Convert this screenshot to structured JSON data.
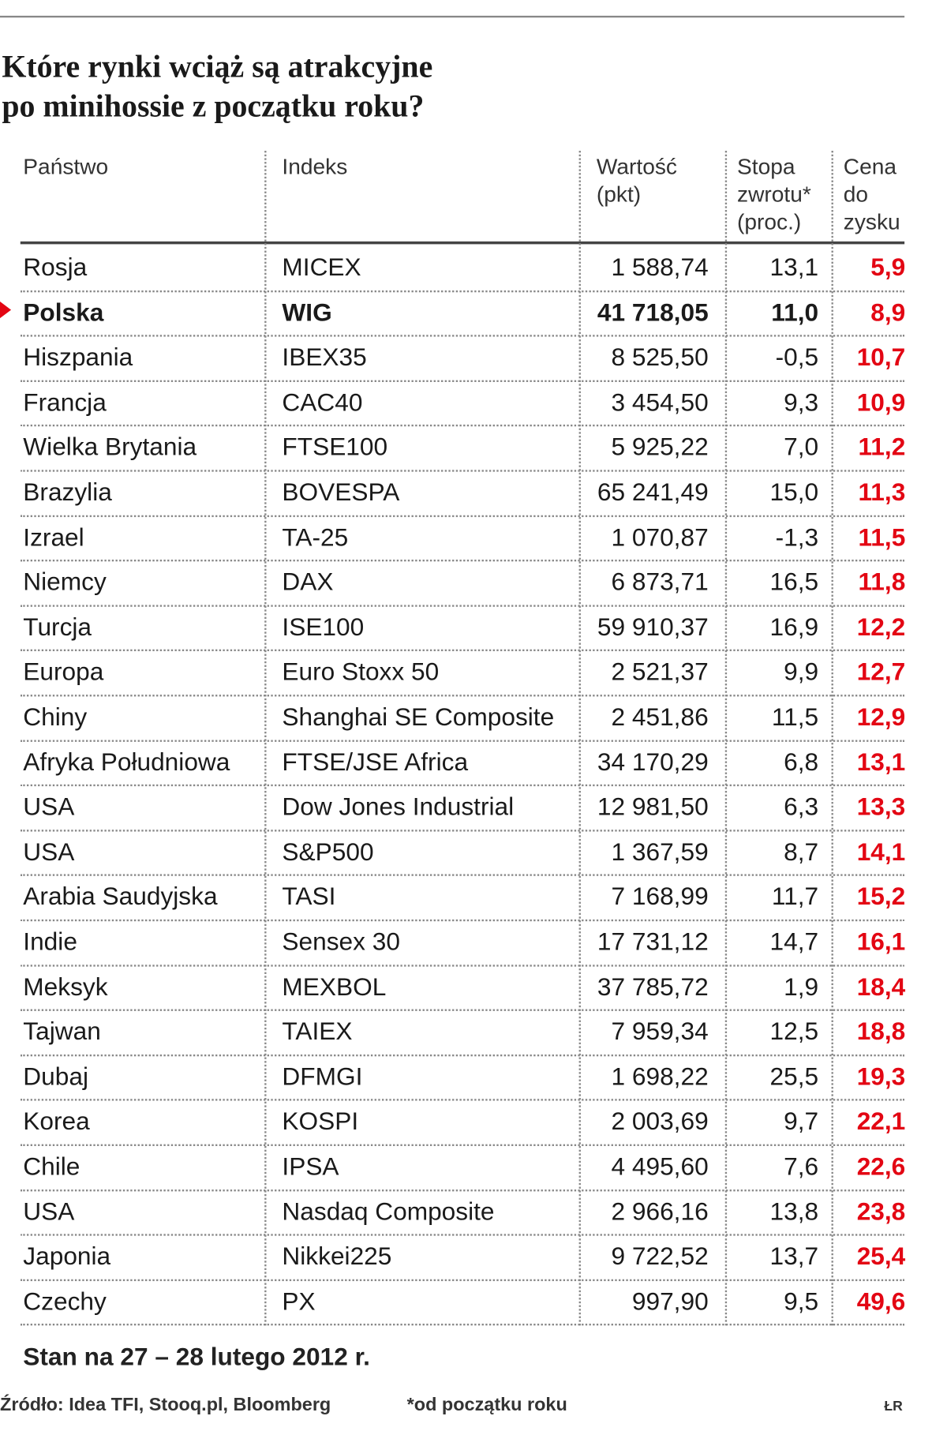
{
  "header": {
    "title": [
      "Które rynki wciąż są atrakcyjne",
      "po minihossie z początku roku?"
    ]
  },
  "table": {
    "columns": [
      [
        "Państwo"
      ],
      [
        "Indeks"
      ],
      [
        "Wartość",
        "(pkt)"
      ],
      [
        "Stopa",
        "zwrotu*",
        "(proc.)"
      ],
      [
        "Cena",
        "do",
        "zysku"
      ]
    ],
    "rows": [
      [
        "Rosja",
        "MICEX",
        "1 588,74",
        "13,1",
        "5,9"
      ],
      [
        "Polska",
        "WIG",
        "41 718,05",
        "11,0",
        "8,9"
      ],
      [
        "Hiszpania",
        "IBEX35",
        "8 525,50",
        "-0,5",
        "10,7"
      ],
      [
        "Francja",
        "CAC40",
        "3 454,50",
        "9,3",
        "10,9"
      ],
      [
        "Wielka Brytania",
        "FTSE100",
        "5 925,22",
        "7,0",
        "11,2"
      ],
      [
        "Brazylia",
        "BOVESPA",
        "65 241,49",
        "15,0",
        "11,3"
      ],
      [
        "Izrael",
        "TA-25",
        "1 070,87",
        "-1,3",
        "11,5"
      ],
      [
        "Niemcy",
        "DAX",
        "6 873,71",
        "16,5",
        "11,8"
      ],
      [
        "Turcja",
        "ISE100",
        "59 910,37",
        "16,9",
        "12,2"
      ],
      [
        "Europa",
        "Euro Stoxx 50",
        "2 521,37",
        "9,9",
        "12,7"
      ],
      [
        "Chiny",
        "Shanghai SE Composite",
        "2 451,86",
        "11,5",
        "12,9"
      ],
      [
        "Afryka Południowa",
        "FTSE/JSE Africa",
        "34 170,29",
        "6,8",
        "13,1"
      ],
      [
        "USA",
        "Dow Jones Industrial",
        "12 981,50",
        "6,3",
        "13,3"
      ],
      [
        "USA",
        "S&P500",
        "1 367,59",
        "8,7",
        "14,1"
      ],
      [
        "Arabia Saudyjska",
        "TASI",
        "7 168,99",
        "11,7",
        "15,2"
      ],
      [
        "Indie",
        "Sensex 30",
        "17 731,12",
        "14,7",
        "16,1"
      ],
      [
        "Meksyk",
        "MEXBOL",
        "37 785,72",
        "1,9",
        "18,4"
      ],
      [
        "Tajwan",
        "TAIEX",
        "7 959,34",
        "12,5",
        "18,8"
      ],
      [
        "Dubaj",
        "DFMGI",
        "1 698,22",
        "25,5",
        "19,3"
      ],
      [
        "Korea",
        "KOSPI",
        "2 003,69",
        "9,7",
        "22,1"
      ],
      [
        "Chile",
        "IPSA",
        "4 495,60",
        "7,6",
        "22,6"
      ],
      [
        "USA",
        "Nasdaq Composite",
        "2 966,16",
        "13,8",
        "23,8"
      ],
      [
        "Japonia",
        "Nikkei225",
        "9 722,52",
        "13,7",
        "25,4"
      ],
      [
        "Czechy",
        "PX",
        "997,90",
        "9,5",
        "49,6"
      ]
    ]
  },
  "footer": {
    "date": "Stan na 27 – 28 lutego 2012 r.",
    "source": "Źródło: Idea TFI, Stooq.pl, Bloomberg",
    "note": "*od początku roku",
    "author": "ŁR"
  }
}
